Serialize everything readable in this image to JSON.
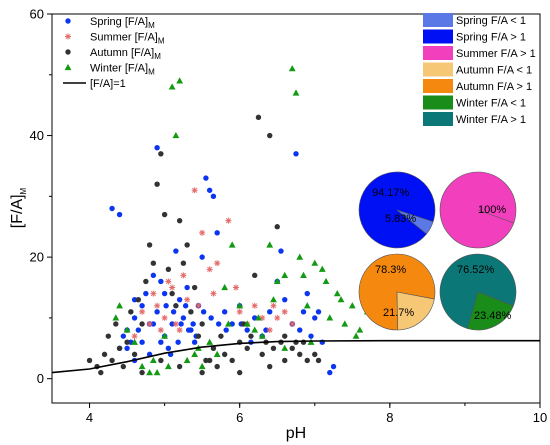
{
  "colors": {
    "spring": "#0b35f0",
    "summer": "#e46a6a",
    "autumn": "#333333",
    "winter": "#139a13",
    "fit": "#000000",
    "spring_lt1": "#5a78e6",
    "spring_gt1": "#0010f5",
    "summer_gt1": "#f23fbe",
    "autumn_lt1": "#f6c775",
    "autumn_gt1": "#f5890f",
    "winter_lt1": "#1a8c1a",
    "winter_gt1": "#0b7777"
  },
  "chart_data": [
    {
      "type": "scatter",
      "xlabel": "pH",
      "ylabel_main": "[F/A]",
      "ylabel_sub": "M",
      "xlim": [
        3.5,
        10
      ],
      "ylim": [
        -4,
        60
      ],
      "xticks": [
        "4",
        "6",
        "8",
        "10"
      ],
      "yticks": [
        "0",
        "20",
        "40",
        "60"
      ],
      "legend_position": "top-left",
      "series": [
        {
          "name": "Spring [F/A]",
          "name_sub": "M",
          "marker": "circle",
          "points": [
            [
              4.3,
              28
            ],
            [
              4.4,
              27
            ],
            [
              4.5,
              8
            ],
            [
              4.5,
              5
            ],
            [
              4.6,
              3
            ],
            [
              4.6,
              10
            ],
            [
              4.7,
              12
            ],
            [
              4.7,
              6
            ],
            [
              4.8,
              9
            ],
            [
              4.8,
              4
            ],
            [
              4.85,
              17
            ],
            [
              4.9,
              11
            ],
            [
              4.9,
              38
            ],
            [
              4.95,
              16
            ],
            [
              5.0,
              14
            ],
            [
              5.0,
              7
            ],
            [
              5.05,
              5
            ],
            [
              5.1,
              9
            ],
            [
              5.15,
              21
            ],
            [
              5.2,
              13
            ],
            [
              5.25,
              10
            ],
            [
              5.3,
              15
            ],
            [
              5.35,
              8
            ],
            [
              5.4,
              6
            ],
            [
              5.45,
              12
            ],
            [
              5.5,
              20
            ],
            [
              5.55,
              33
            ],
            [
              5.6,
              31
            ],
            [
              5.65,
              30
            ],
            [
              5.7,
              24
            ],
            [
              5.8,
              11
            ],
            [
              5.9,
              9
            ],
            [
              6.0,
              12
            ],
            [
              6.1,
              8
            ],
            [
              6.2,
              10
            ],
            [
              6.3,
              7
            ],
            [
              6.4,
              11
            ],
            [
              6.5,
              16
            ],
            [
              6.6,
              13
            ],
            [
              6.7,
              9
            ],
            [
              6.75,
              37
            ],
            [
              6.8,
              8
            ],
            [
              6.9,
              14
            ],
            [
              7.0,
              10
            ],
            [
              7.1,
              6
            ],
            [
              7.2,
              1
            ],
            [
              7.25,
              2
            ],
            [
              4.55,
              6
            ],
            [
              4.65,
              8
            ],
            [
              4.75,
              14
            ],
            [
              5.02,
              12
            ],
            [
              5.12,
              11
            ],
            [
              5.22,
              9
            ],
            [
              5.32,
              8
            ],
            [
              5.42,
              7
            ],
            [
              5.52,
              11
            ],
            [
              5.62,
              10
            ],
            [
              5.72,
              9
            ],
            [
              5.82,
              8
            ],
            [
              6.02,
              9
            ],
            [
              6.15,
              6
            ],
            [
              6.35,
              8
            ],
            [
              6.55,
              21
            ],
            [
              6.85,
              11
            ],
            [
              6.95,
              7
            ],
            [
              7.05,
              11
            ],
            [
              4.4,
              5
            ],
            [
              4.45,
              7
            ],
            [
              4.6,
              13
            ],
            [
              4.85,
              9
            ],
            [
              4.95,
              6
            ],
            [
              5.08,
              4
            ],
            [
              5.18,
              6
            ],
            [
              5.28,
              12
            ],
            [
              5.38,
              9
            ]
          ]
        },
        {
          "name": "Summer [F/A]",
          "name_sub": "M",
          "marker": "asterisk",
          "points": [
            [
              4.7,
              11
            ],
            [
              4.8,
              9
            ],
            [
              4.9,
              12
            ],
            [
              5.0,
              10
            ],
            [
              5.1,
              15
            ],
            [
              5.2,
              8
            ],
            [
              5.3,
              13
            ],
            [
              5.4,
              31
            ],
            [
              5.5,
              24
            ],
            [
              5.6,
              18
            ],
            [
              5.7,
              19
            ],
            [
              5.85,
              26
            ],
            [
              6.0,
              11
            ],
            [
              6.1,
              9
            ],
            [
              6.2,
              12
            ],
            [
              6.4,
              8
            ],
            [
              6.5,
              10
            ],
            [
              6.6,
              11
            ],
            [
              6.7,
              9
            ],
            [
              4.6,
              7
            ],
            [
              4.85,
              14
            ],
            [
              5.05,
              16
            ],
            [
              5.25,
              17
            ],
            [
              5.45,
              12
            ],
            [
              5.65,
              14
            ],
            [
              5.95,
              15
            ],
            [
              6.3,
              10
            ],
            [
              6.45,
              12
            ],
            [
              4.95,
              8
            ],
            [
              5.15,
              9
            ]
          ]
        },
        {
          "name": "Autumn [F/A]",
          "name_sub": "M",
          "marker": "circle",
          "points": [
            [
              4.0,
              3
            ],
            [
              4.1,
              2
            ],
            [
              4.2,
              4
            ],
            [
              4.3,
              3
            ],
            [
              4.4,
              5
            ],
            [
              4.5,
              6
            ],
            [
              4.6,
              4
            ],
            [
              4.7,
              9
            ],
            [
              4.8,
              22
            ],
            [
              4.9,
              32
            ],
            [
              4.95,
              37
            ],
            [
              5.0,
              27
            ],
            [
              5.05,
              18
            ],
            [
              5.1,
              14
            ],
            [
              5.15,
              12
            ],
            [
              5.2,
              26
            ],
            [
              5.3,
              22
            ],
            [
              5.4,
              15
            ],
            [
              5.5,
              9
            ],
            [
              5.6,
              3
            ],
            [
              5.7,
              2
            ],
            [
              5.8,
              4
            ],
            [
              6.0,
              6
            ],
            [
              6.1,
              5
            ],
            [
              6.2,
              17
            ],
            [
              6.3,
              4
            ],
            [
              6.4,
              40
            ],
            [
              6.5,
              25
            ],
            [
              6.6,
              3
            ],
            [
              6.7,
              5
            ],
            [
              6.8,
              4
            ],
            [
              6.9,
              3
            ],
            [
              7.0,
              4
            ],
            [
              6.25,
              43
            ],
            [
              6.45,
              5
            ],
            [
              4.25,
              7
            ],
            [
              4.35,
              9
            ],
            [
              4.55,
              11
            ],
            [
              4.65,
              13
            ],
            [
              4.75,
              16
            ],
            [
              4.85,
              19
            ],
            [
              5.25,
              19
            ],
            [
              5.35,
              11
            ],
            [
              5.45,
              7
            ],
            [
              5.55,
              3
            ],
            [
              5.65,
              5
            ],
            [
              5.75,
              7
            ],
            [
              5.9,
              3
            ],
            [
              6.05,
              9
            ],
            [
              6.15,
              7
            ],
            [
              6.35,
              6
            ],
            [
              6.55,
              6
            ],
            [
              6.75,
              6
            ],
            [
              4.15,
              1
            ],
            [
              4.45,
              2
            ],
            [
              4.7,
              1
            ],
            [
              4.95,
              3
            ],
            [
              5.2,
              2
            ],
            [
              5.5,
              1
            ],
            [
              6.0,
              1
            ],
            [
              6.4,
              2
            ],
            [
              6.6,
              7
            ],
            [
              6.85,
              6
            ],
            [
              7.05,
              3
            ]
          ]
        },
        {
          "name": "Winter [F/A]",
          "name_sub": "M",
          "marker": "triangle",
          "points": [
            [
              4.4,
              12
            ],
            [
              4.5,
              8
            ],
            [
              4.6,
              6
            ],
            [
              4.7,
              2
            ],
            [
              4.8,
              1
            ],
            [
              4.9,
              1
            ],
            [
              5.0,
              7
            ],
            [
              5.1,
              48
            ],
            [
              5.2,
              49
            ],
            [
              5.15,
              40
            ],
            [
              5.3,
              3
            ],
            [
              5.4,
              4
            ],
            [
              5.5,
              2
            ],
            [
              5.6,
              6
            ],
            [
              5.7,
              4
            ],
            [
              5.8,
              15
            ],
            [
              5.9,
              22
            ],
            [
              6.0,
              12
            ],
            [
              6.1,
              9
            ],
            [
              6.2,
              8
            ],
            [
              6.3,
              7
            ],
            [
              6.4,
              22
            ],
            [
              6.5,
              16
            ],
            [
              6.6,
              17
            ],
            [
              6.7,
              51
            ],
            [
              6.75,
              47
            ],
            [
              6.8,
              20
            ],
            [
              6.9,
              12
            ],
            [
              7.0,
              19
            ],
            [
              7.1,
              18
            ],
            [
              7.2,
              10
            ],
            [
              7.3,
              14
            ],
            [
              7.4,
              9
            ],
            [
              7.5,
              12
            ],
            [
              7.6,
              8
            ],
            [
              7.7,
              11
            ],
            [
              7.8,
              10
            ],
            [
              6.6,
              5
            ],
            [
              6.95,
              6
            ],
            [
              7.15,
              16
            ],
            [
              7.35,
              13
            ],
            [
              7.55,
              7
            ],
            [
              4.35,
              10
            ],
            [
              4.85,
              3
            ],
            [
              5.05,
              2
            ],
            [
              5.45,
              5
            ],
            [
              5.85,
              9
            ],
            [
              6.25,
              10
            ],
            [
              6.45,
              13
            ],
            [
              6.85,
              17
            ]
          ]
        }
      ],
      "fit_line": {
        "name": "[F/A]=1",
        "points": [
          [
            3.5,
            1.0
          ],
          [
            4.0,
            1.6
          ],
          [
            4.5,
            2.8
          ],
          [
            5.0,
            4.2
          ],
          [
            5.5,
            5.2
          ],
          [
            6.0,
            5.8
          ],
          [
            6.5,
            6.1
          ],
          [
            7.0,
            6.2
          ],
          [
            8.0,
            6.25
          ],
          [
            9.0,
            6.25
          ],
          [
            10.0,
            6.25
          ]
        ]
      }
    },
    {
      "type": "pie",
      "legend_position": "top-right",
      "legend": [
        {
          "label": "Spring F/A < 1",
          "color_key": "spring_lt1"
        },
        {
          "label": "Spring F/A > 1",
          "color_key": "spring_gt1"
        },
        {
          "label": "Summer F/A > 1",
          "color_key": "summer_gt1"
        },
        {
          "label": "Autumn F/A < 1",
          "color_key": "autumn_lt1"
        },
        {
          "label": "Autumn F/A > 1",
          "color_key": "autumn_gt1"
        },
        {
          "label": "Winter F/A < 1",
          "color_key": "winter_lt1"
        },
        {
          "label": "Winter F/A > 1",
          "color_key": "winter_gt1"
        }
      ],
      "pies": [
        {
          "season": "Spring",
          "slices": [
            {
              "label": "94.17%",
              "value": 94.17,
              "color_key": "spring_gt1"
            },
            {
              "label": "5.83%",
              "value": 5.83,
              "color_key": "spring_lt1"
            }
          ]
        },
        {
          "season": "Summer",
          "slices": [
            {
              "label": "100%",
              "value": 100,
              "color_key": "summer_gt1"
            }
          ]
        },
        {
          "season": "Autumn",
          "slices": [
            {
              "label": "78.3%",
              "value": 78.3,
              "color_key": "autumn_gt1"
            },
            {
              "label": "21.7%",
              "value": 21.7,
              "color_key": "autumn_lt1"
            }
          ]
        },
        {
          "season": "Winter",
          "slices": [
            {
              "label": "76.52%",
              "value": 76.52,
              "color_key": "winter_gt1"
            },
            {
              "label": "23.48%",
              "value": 23.48,
              "color_key": "winter_lt1"
            }
          ]
        }
      ]
    }
  ]
}
